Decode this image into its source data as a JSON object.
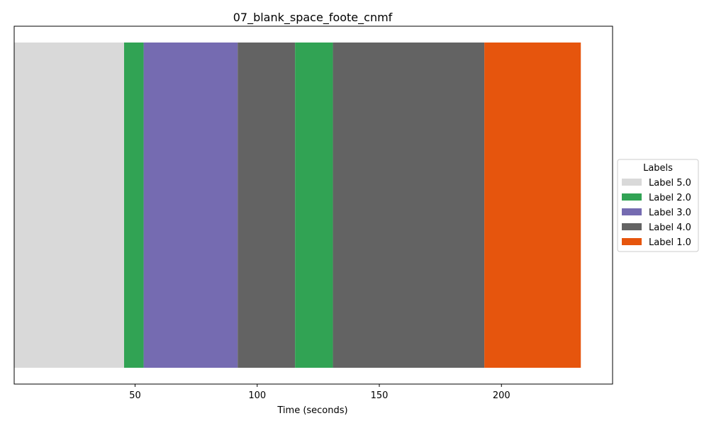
{
  "chart_data": {
    "type": "bar",
    "orientation": "horizontal-timeline",
    "title": "07_blank_space_foote_cnmf",
    "xlabel": "Time (seconds)",
    "ylabel": "",
    "xlim": [
      0.5,
      245.5
    ],
    "xticks": [
      50,
      100,
      150,
      200
    ],
    "xtick_labels": [
      "50",
      "100",
      "150",
      "200"
    ],
    "grid": false,
    "legend": {
      "title": "Labels",
      "placement": "right",
      "entries": [
        {
          "label": "Label 5.0",
          "color": "#d9d9d9"
        },
        {
          "label": "Label 2.0",
          "color": "#31a354"
        },
        {
          "label": "Label 3.0",
          "color": "#756bb1"
        },
        {
          "label": "Label 4.0",
          "color": "#636363"
        },
        {
          "label": "Label 1.0",
          "color": "#e6550d"
        }
      ]
    },
    "segments": [
      {
        "label": "Label 5.0",
        "start": 0.5,
        "end": 45.5
      },
      {
        "label": "Label 2.0",
        "start": 45.5,
        "end": 53.5
      },
      {
        "label": "Label 3.0",
        "start": 53.5,
        "end": 92.0
      },
      {
        "label": "Label 4.0",
        "start": 92.0,
        "end": 115.5
      },
      {
        "label": "Label 2.0",
        "start": 115.5,
        "end": 131.0
      },
      {
        "label": "Label 4.0",
        "start": 131.0,
        "end": 193.0
      },
      {
        "label": "Label 1.0",
        "start": 193.0,
        "end": 232.5
      }
    ]
  }
}
